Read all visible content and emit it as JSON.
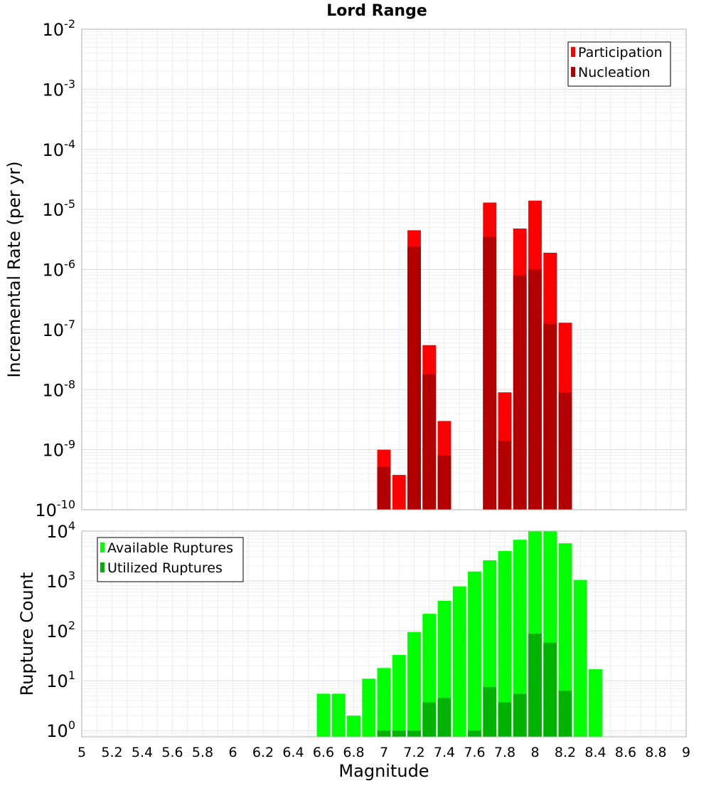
{
  "chart_data": [
    {
      "type": "bar",
      "title": "Lord Range",
      "xlabel": "",
      "ylabel": "Incremental Rate (per yr)",
      "yscale": "log",
      "ylim": [
        1e-10,
        0.01
      ],
      "xlim": [
        5,
        9
      ],
      "grid": true,
      "legend_position": "top-right",
      "x": [
        7.0,
        7.1,
        7.2,
        7.3,
        7.4,
        7.7,
        7.8,
        7.9,
        8.0,
        8.1,
        8.2
      ],
      "series": [
        {
          "name": "Participation",
          "color": "#ff0000",
          "values": [
            1e-09,
            3.8e-10,
            4.5e-06,
            5.5e-08,
            3e-09,
            1.3e-05,
            9e-09,
            4.8e-06,
            1.4e-05,
            1.9e-06,
            1.3e-07
          ]
        },
        {
          "name": "Nucleation",
          "color": "#b20000",
          "values": [
            5.2e-10,
            0,
            2.4e-06,
            1.8e-08,
            8e-10,
            3.5e-06,
            1.4e-09,
            8e-07,
            1e-06,
            1.25e-07,
            9e-09
          ]
        }
      ],
      "ytick_labels": [
        "10-10",
        "10-9",
        "10-8",
        "10-7",
        "10-6",
        "10-5",
        "10-4",
        "10-3",
        "10-2"
      ]
    },
    {
      "type": "bar",
      "title": "",
      "xlabel": "Magnitude",
      "ylabel": "Rupture Count",
      "yscale": "log",
      "ylim": [
        0.75,
        10000
      ],
      "xlim": [
        5,
        9
      ],
      "grid": true,
      "legend_position": "top-left",
      "x": [
        6.6,
        6.7,
        6.8,
        6.9,
        7.0,
        7.1,
        7.2,
        7.3,
        7.4,
        7.5,
        7.6,
        7.7,
        7.8,
        7.9,
        8.0,
        8.1,
        8.2,
        8.3,
        8.4
      ],
      "series": [
        {
          "name": "Available Ruptures",
          "color": "#00ff00",
          "values": [
            5.5,
            5.5,
            2,
            11,
            18,
            33,
            95,
            220,
            400,
            780,
            1550,
            2600,
            4000,
            6700,
            10000,
            10000,
            5700,
            1050,
            17
          ]
        },
        {
          "name": "Utilized Ruptures",
          "color": "#00b200",
          "values": [
            0,
            0,
            0,
            0,
            1,
            1,
            1,
            3.7,
            4.5,
            0,
            1,
            7.5,
            3.7,
            5.5,
            88,
            58,
            6.3,
            0,
            0
          ]
        }
      ],
      "ytick_labels": [
        "100",
        "101",
        "102",
        "103",
        "104"
      ],
      "xtick_labels": [
        "5",
        "5.2",
        "5.4",
        "5.6",
        "5.8",
        "6",
        "6.2",
        "6.4",
        "6.6",
        "6.8",
        "7",
        "7.2",
        "7.4",
        "7.6",
        "7.8",
        "8",
        "8.2",
        "8.4",
        "8.6",
        "8.8",
        "9"
      ]
    }
  ]
}
